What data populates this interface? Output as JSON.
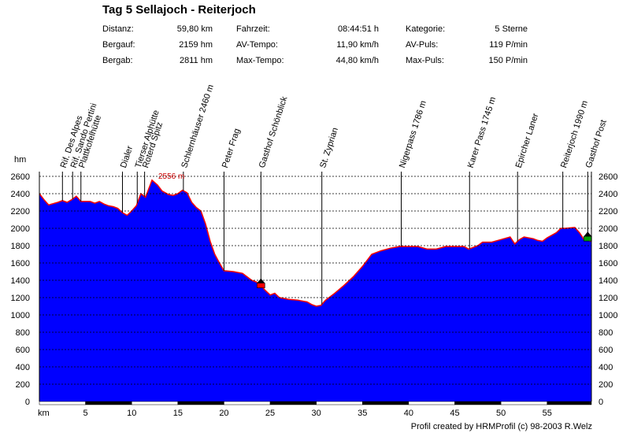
{
  "header": {
    "title": "Tag 5 Sellajoch - Reiterjoch",
    "stats": [
      {
        "label": "Distanz:",
        "value": "59,80 km"
      },
      {
        "label": "Bergauf:",
        "value": "2159 hm"
      },
      {
        "label": "Bergab:",
        "value": "2811 hm"
      },
      {
        "label": "Fahrzeit:",
        "value": "08:44:51 h"
      },
      {
        "label": "AV-Tempo:",
        "value": "11,90 km/h"
      },
      {
        "label": "Max-Tempo:",
        "value": "44,80 km/h"
      },
      {
        "label": "Kategorie:",
        "value": "5 Sterne"
      },
      {
        "label": "AV-Puls:",
        "value": "119 P/min"
      },
      {
        "label": "Max-Puls:",
        "value": "150 P/min"
      }
    ]
  },
  "footer": {
    "credit": "Profil created by HRMProfil (c) 98-2003 R.Welz"
  },
  "colors": {
    "fill": "#0000ff",
    "outline": "#ff0000",
    "grid": "#000000"
  },
  "chart_data": {
    "type": "area",
    "ylabel": "hm",
    "xlabel": "km",
    "xlim": [
      0,
      59.8
    ],
    "ylim": [
      0,
      2600
    ],
    "yticks": [
      0,
      200,
      400,
      600,
      800,
      1000,
      1200,
      1400,
      1600,
      1800,
      2000,
      2200,
      2400,
      2600
    ],
    "xticks": [
      5,
      10,
      15,
      20,
      25,
      30,
      35,
      40,
      45,
      50,
      55
    ],
    "grid": true,
    "peak_label": "2556 m",
    "profile": [
      [
        0,
        2400
      ],
      [
        0.5,
        2330
      ],
      [
        1,
        2270
      ],
      [
        2,
        2300
      ],
      [
        2.5,
        2320
      ],
      [
        3,
        2300
      ],
      [
        3.5,
        2330
      ],
      [
        4,
        2370
      ],
      [
        4.5,
        2310
      ],
      [
        5.5,
        2310
      ],
      [
        6,
        2290
      ],
      [
        6.5,
        2310
      ],
      [
        7,
        2280
      ],
      [
        7.5,
        2260
      ],
      [
        8,
        2250
      ],
      [
        8.5,
        2230
      ],
      [
        9,
        2180
      ],
      [
        9.5,
        2150
      ],
      [
        10,
        2200
      ],
      [
        10.5,
        2260
      ],
      [
        11,
        2400
      ],
      [
        11.5,
        2360
      ],
      [
        12,
        2500
      ],
      [
        12.2,
        2556
      ],
      [
        12.8,
        2500
      ],
      [
        13.3,
        2430
      ],
      [
        14,
        2390
      ],
      [
        14.5,
        2380
      ],
      [
        15,
        2400
      ],
      [
        15.5,
        2440
      ],
      [
        16,
        2410
      ],
      [
        16.5,
        2300
      ],
      [
        17,
        2240
      ],
      [
        17.5,
        2200
      ],
      [
        18,
        2050
      ],
      [
        18.5,
        1850
      ],
      [
        19,
        1700
      ],
      [
        19.5,
        1600
      ],
      [
        20,
        1510
      ],
      [
        21,
        1500
      ],
      [
        22,
        1480
      ],
      [
        22.5,
        1440
      ],
      [
        23,
        1400
      ],
      [
        23.5,
        1380
      ],
      [
        24,
        1340
      ],
      [
        24.5,
        1280
      ],
      [
        25,
        1230
      ],
      [
        25.5,
        1250
      ],
      [
        26,
        1200
      ],
      [
        27,
        1180
      ],
      [
        28,
        1170
      ],
      [
        29,
        1150
      ],
      [
        29.5,
        1120
      ],
      [
        30,
        1100
      ],
      [
        30.5,
        1110
      ],
      [
        31,
        1170
      ],
      [
        32,
        1250
      ],
      [
        33,
        1340
      ],
      [
        34,
        1440
      ],
      [
        35,
        1560
      ],
      [
        36,
        1700
      ],
      [
        37,
        1740
      ],
      [
        38,
        1770
      ],
      [
        39,
        1790
      ],
      [
        40,
        1790
      ],
      [
        41,
        1790
      ],
      [
        42,
        1760
      ],
      [
        43,
        1760
      ],
      [
        44,
        1790
      ],
      [
        45,
        1790
      ],
      [
        46,
        1790
      ],
      [
        46.5,
        1760
      ],
      [
        47,
        1780
      ],
      [
        47.5,
        1800
      ],
      [
        48,
        1840
      ],
      [
        49,
        1840
      ],
      [
        50,
        1870
      ],
      [
        51,
        1900
      ],
      [
        51.5,
        1820
      ],
      [
        52,
        1870
      ],
      [
        52.5,
        1900
      ],
      [
        53,
        1890
      ],
      [
        53.5,
        1880
      ],
      [
        54,
        1860
      ],
      [
        54.5,
        1850
      ],
      [
        55,
        1890
      ],
      [
        56,
        1950
      ],
      [
        56.5,
        2000
      ],
      [
        57,
        2000
      ],
      [
        58,
        2010
      ],
      [
        58.5,
        1950
      ],
      [
        59,
        1870
      ],
      [
        59.8,
        1850
      ]
    ],
    "waypoints": [
      {
        "name": "Rif. Des Alpes",
        "km": 2.5
      },
      {
        "name": "Rif. Sando Pertini",
        "km": 3.6
      },
      {
        "name": "Plattkofelhütte",
        "km": 4.5
      },
      {
        "name": "Dialer",
        "km": 9.0
      },
      {
        "name": "Tierser Alphütte",
        "km": 10.6
      },
      {
        "name": "Roterd Spitz",
        "km": 11.4
      },
      {
        "name": "Schlernhäuser 2460 m",
        "km": 15.6
      },
      {
        "name": "Peter Frag",
        "km": 20.0
      },
      {
        "name": "Gasthof Schönblick",
        "km": 24.0
      },
      {
        "name": "St. Zyprian",
        "km": 30.6
      },
      {
        "name": "Nigerpass 1786 m",
        "km": 39.2
      },
      {
        "name": "Karer Pass 1745 m",
        "km": 46.6
      },
      {
        "name": "Epircher Laner",
        "km": 51.8
      },
      {
        "name": "Reiterjoch 1990 m",
        "km": 56.7
      },
      {
        "name": "Gasthof Post",
        "km": 59.4
      }
    ],
    "markers": [
      {
        "km": 24.0,
        "alt": 1340,
        "color": "#ff0000"
      },
      {
        "km": 59.4,
        "alt": 1880,
        "color": "#00a000"
      }
    ]
  }
}
